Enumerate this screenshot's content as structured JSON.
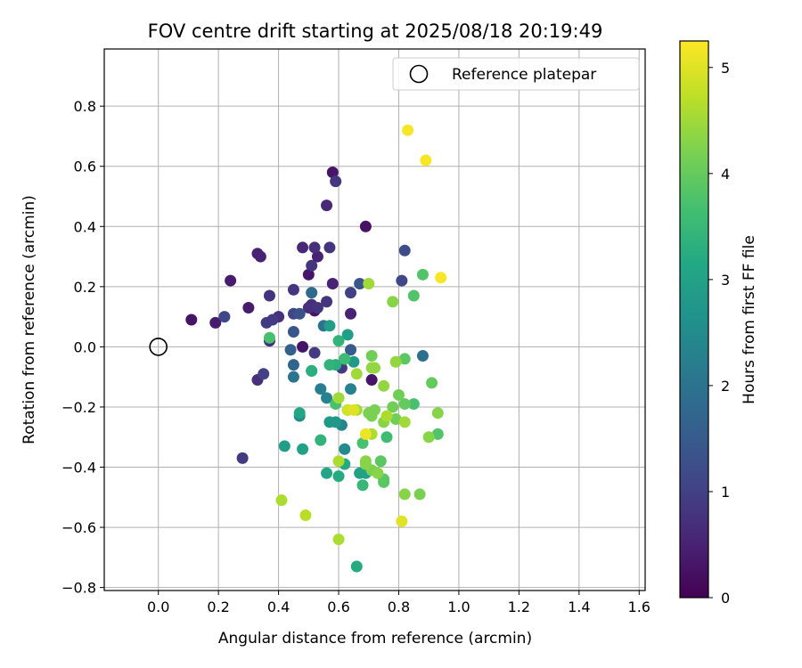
{
  "chart_data": {
    "type": "scatter",
    "title": "FOV centre drift starting at 2025/08/18 20:19:49",
    "xlabel": "Angular distance from reference (arcmin)",
    "ylabel": "Rotation from reference (arcmin)",
    "xlim": [
      -0.18,
      1.62
    ],
    "ylim": [
      -0.81,
      0.99
    ],
    "xticks": [
      "0.0",
      "0.2",
      "0.4",
      "0.6",
      "0.8",
      "1.0",
      "1.2",
      "1.4",
      "1.6"
    ],
    "yticks": [
      "−0.8",
      "−0.6",
      "−0.4",
      "−0.2",
      "0.0",
      "0.2",
      "0.4",
      "0.6",
      "0.8"
    ],
    "grid": true,
    "legend": {
      "position": "top-right",
      "entries": [
        "Reference platepar"
      ]
    },
    "reference_point": {
      "x": 0.0,
      "y": 0.0
    },
    "colorbar": {
      "label": "Hours from first FF file",
      "colormap": "viridis",
      "range": [
        0,
        5.25
      ],
      "ticks": [
        "0",
        "1",
        "2",
        "3",
        "4",
        "5"
      ]
    },
    "series": [
      {
        "points": [
          {
            "x": 0.69,
            "y": 0.4,
            "h": 0.25
          },
          {
            "x": 0.58,
            "y": 0.58,
            "h": 0.3
          },
          {
            "x": 0.5,
            "y": 0.24,
            "h": 0.3
          },
          {
            "x": 0.52,
            "y": 0.12,
            "h": 0.3
          },
          {
            "x": 0.48,
            "y": 0.0,
            "h": 0.3
          },
          {
            "x": 0.71,
            "y": -0.11,
            "h": 0.3
          },
          {
            "x": 0.11,
            "y": 0.09,
            "h": 0.3
          },
          {
            "x": 0.19,
            "y": 0.08,
            "h": 0.4
          },
          {
            "x": 0.24,
            "y": 0.22,
            "h": 0.4
          },
          {
            "x": 0.3,
            "y": 0.13,
            "h": 0.4
          },
          {
            "x": 0.33,
            "y": 0.31,
            "h": 0.5
          },
          {
            "x": 0.34,
            "y": 0.3,
            "h": 0.5
          },
          {
            "x": 0.53,
            "y": 0.3,
            "h": 0.5
          },
          {
            "x": 0.58,
            "y": 0.21,
            "h": 0.5
          },
          {
            "x": 0.64,
            "y": 0.11,
            "h": 0.5
          },
          {
            "x": 0.56,
            "y": 0.47,
            "h": 0.6
          },
          {
            "x": 0.48,
            "y": 0.33,
            "h": 0.6
          },
          {
            "x": 0.52,
            "y": 0.33,
            "h": 0.7
          },
          {
            "x": 0.51,
            "y": 0.14,
            "h": 0.7
          },
          {
            "x": 0.5,
            "y": 0.13,
            "h": 0.7
          },
          {
            "x": 0.4,
            "y": 0.1,
            "h": 0.7
          },
          {
            "x": 0.37,
            "y": 0.02,
            "h": 0.7
          },
          {
            "x": 0.33,
            "y": -0.11,
            "h": 0.7
          },
          {
            "x": 0.57,
            "y": 0.33,
            "h": 0.8
          },
          {
            "x": 0.59,
            "y": 0.55,
            "h": 0.8
          },
          {
            "x": 0.51,
            "y": 0.27,
            "h": 0.8
          },
          {
            "x": 0.45,
            "y": 0.19,
            "h": 0.8
          },
          {
            "x": 0.37,
            "y": 0.17,
            "h": 0.8
          },
          {
            "x": 0.53,
            "y": 0.13,
            "h": 0.8
          },
          {
            "x": 0.56,
            "y": 0.15,
            "h": 0.8
          },
          {
            "x": 0.38,
            "y": 0.09,
            "h": 0.9
          },
          {
            "x": 0.36,
            "y": 0.08,
            "h": 0.9
          },
          {
            "x": 0.52,
            "y": -0.02,
            "h": 0.9
          },
          {
            "x": 0.61,
            "y": -0.07,
            "h": 0.9
          },
          {
            "x": 0.28,
            "y": -0.37,
            "h": 0.9
          },
          {
            "x": 0.35,
            "y": -0.09,
            "h": 1.0
          },
          {
            "x": 0.64,
            "y": 0.18,
            "h": 1.0
          },
          {
            "x": 0.22,
            "y": 0.1,
            "h": 1.1
          },
          {
            "x": 0.45,
            "y": 0.11,
            "h": 1.1
          },
          {
            "x": 0.81,
            "y": 0.22,
            "h": 1.1
          },
          {
            "x": 0.82,
            "y": 0.32,
            "h": 1.2
          },
          {
            "x": 0.47,
            "y": 0.11,
            "h": 1.3
          },
          {
            "x": 0.45,
            "y": 0.05,
            "h": 1.4
          },
          {
            "x": 0.67,
            "y": 0.21,
            "h": 1.4
          },
          {
            "x": 0.64,
            "y": -0.01,
            "h": 1.5
          },
          {
            "x": 0.44,
            "y": -0.01,
            "h": 1.6
          },
          {
            "x": 0.45,
            "y": -0.06,
            "h": 1.7
          },
          {
            "x": 0.51,
            "y": 0.18,
            "h": 1.8
          },
          {
            "x": 0.88,
            "y": -0.03,
            "h": 1.9
          },
          {
            "x": 0.45,
            "y": -0.1,
            "h": 2.0
          },
          {
            "x": 0.55,
            "y": 0.07,
            "h": 2.0
          },
          {
            "x": 0.54,
            "y": -0.14,
            "h": 2.2
          },
          {
            "x": 0.64,
            "y": -0.14,
            "h": 2.3
          },
          {
            "x": 0.56,
            "y": -0.17,
            "h": 2.3
          },
          {
            "x": 0.61,
            "y": -0.26,
            "h": 2.4
          },
          {
            "x": 0.62,
            "y": -0.34,
            "h": 2.5
          },
          {
            "x": 0.47,
            "y": -0.23,
            "h": 2.5
          },
          {
            "x": 0.51,
            "y": -0.08,
            "h": 2.6
          },
          {
            "x": 0.62,
            "y": -0.04,
            "h": 2.7
          },
          {
            "x": 0.65,
            "y": -0.05,
            "h": 2.8
          },
          {
            "x": 0.57,
            "y": -0.25,
            "h": 2.8
          },
          {
            "x": 0.59,
            "y": -0.25,
            "h": 2.8
          },
          {
            "x": 0.63,
            "y": 0.04,
            "h": 2.9
          },
          {
            "x": 0.57,
            "y": 0.07,
            "h": 2.9
          },
          {
            "x": 0.42,
            "y": -0.33,
            "h": 2.9
          },
          {
            "x": 0.48,
            "y": -0.34,
            "h": 3.0
          },
          {
            "x": 0.67,
            "y": -0.42,
            "h": 3.0
          },
          {
            "x": 0.69,
            "y": -0.42,
            "h": 3.0
          },
          {
            "x": 0.66,
            "y": -0.73,
            "h": 3.2
          },
          {
            "x": 0.63,
            "y": -0.21,
            "h": 3.2
          },
          {
            "x": 0.56,
            "y": -0.42,
            "h": 3.1
          },
          {
            "x": 0.6,
            "y": -0.43,
            "h": 3.2
          },
          {
            "x": 0.62,
            "y": -0.39,
            "h": 3.2
          },
          {
            "x": 0.47,
            "y": -0.22,
            "h": 3.1
          },
          {
            "x": 0.51,
            "y": -0.08,
            "h": 3.3
          },
          {
            "x": 0.59,
            "y": -0.06,
            "h": 3.3
          },
          {
            "x": 0.57,
            "y": -0.06,
            "h": 3.4
          },
          {
            "x": 0.6,
            "y": 0.02,
            "h": 3.4
          },
          {
            "x": 0.54,
            "y": -0.31,
            "h": 3.4
          },
          {
            "x": 0.68,
            "y": -0.46,
            "h": 3.5
          },
          {
            "x": 0.62,
            "y": -0.04,
            "h": 3.6
          },
          {
            "x": 0.76,
            "y": -0.3,
            "h": 3.6
          },
          {
            "x": 0.68,
            "y": -0.32,
            "h": 3.7
          },
          {
            "x": 0.59,
            "y": -0.19,
            "h": 3.7
          },
          {
            "x": 0.37,
            "y": 0.03,
            "h": 3.7
          },
          {
            "x": 0.85,
            "y": 0.17,
            "h": 3.8
          },
          {
            "x": 0.85,
            "y": -0.19,
            "h": 3.7
          },
          {
            "x": 0.88,
            "y": 0.24,
            "h": 3.8
          },
          {
            "x": 0.93,
            "y": -0.29,
            "h": 3.8
          },
          {
            "x": 0.82,
            "y": -0.04,
            "h": 3.9
          },
          {
            "x": 0.75,
            "y": -0.45,
            "h": 3.9
          },
          {
            "x": 0.74,
            "y": -0.38,
            "h": 3.9
          },
          {
            "x": 0.75,
            "y": -0.44,
            "h": 3.9
          },
          {
            "x": 0.91,
            "y": -0.12,
            "h": 4.0
          },
          {
            "x": 0.78,
            "y": -0.2,
            "h": 4.1
          },
          {
            "x": 0.71,
            "y": -0.03,
            "h": 4.1
          },
          {
            "x": 0.82,
            "y": -0.19,
            "h": 4.0
          },
          {
            "x": 0.79,
            "y": -0.24,
            "h": 4.1
          },
          {
            "x": 0.8,
            "y": -0.16,
            "h": 4.1
          },
          {
            "x": 0.7,
            "y": -0.22,
            "h": 4.2
          },
          {
            "x": 0.71,
            "y": -0.23,
            "h": 4.2
          },
          {
            "x": 0.72,
            "y": -0.21,
            "h": 4.2
          },
          {
            "x": 0.75,
            "y": -0.25,
            "h": 4.3
          },
          {
            "x": 0.71,
            "y": -0.41,
            "h": 4.2
          },
          {
            "x": 0.73,
            "y": -0.42,
            "h": 4.3
          },
          {
            "x": 0.69,
            "y": -0.39,
            "h": 4.3
          },
          {
            "x": 0.69,
            "y": -0.38,
            "h": 4.3
          },
          {
            "x": 0.82,
            "y": -0.49,
            "h": 4.3
          },
          {
            "x": 0.87,
            "y": -0.49,
            "h": 4.2
          },
          {
            "x": 0.9,
            "y": -0.3,
            "h": 4.3
          },
          {
            "x": 0.93,
            "y": -0.22,
            "h": 4.3
          },
          {
            "x": 0.79,
            "y": -0.05,
            "h": 4.4
          },
          {
            "x": 0.71,
            "y": -0.07,
            "h": 4.4
          },
          {
            "x": 0.72,
            "y": -0.07,
            "h": 4.4
          },
          {
            "x": 0.75,
            "y": -0.13,
            "h": 4.4
          },
          {
            "x": 0.78,
            "y": 0.15,
            "h": 4.3
          },
          {
            "x": 0.7,
            "y": 0.21,
            "h": 4.5
          },
          {
            "x": 0.66,
            "y": -0.09,
            "h": 4.5
          },
          {
            "x": 0.6,
            "y": -0.17,
            "h": 4.5
          },
          {
            "x": 0.66,
            "y": -0.21,
            "h": 4.5
          },
          {
            "x": 0.82,
            "y": -0.25,
            "h": 4.5
          },
          {
            "x": 0.76,
            "y": -0.23,
            "h": 4.6
          },
          {
            "x": 0.71,
            "y": -0.29,
            "h": 4.6
          },
          {
            "x": 0.6,
            "y": -0.38,
            "h": 4.6
          },
          {
            "x": 0.41,
            "y": -0.51,
            "h": 4.6
          },
          {
            "x": 0.49,
            "y": -0.56,
            "h": 4.7
          },
          {
            "x": 0.6,
            "y": -0.64,
            "h": 4.6
          },
          {
            "x": 0.63,
            "y": -0.21,
            "h": 4.9
          },
          {
            "x": 0.65,
            "y": -0.21,
            "h": 5.0
          },
          {
            "x": 0.69,
            "y": -0.29,
            "h": 5.1
          },
          {
            "x": 0.81,
            "y": -0.58,
            "h": 5.0
          },
          {
            "x": 0.83,
            "y": 0.72,
            "h": 5.2
          },
          {
            "x": 0.89,
            "y": 0.62,
            "h": 5.2
          },
          {
            "x": 0.94,
            "y": 0.23,
            "h": 5.2
          }
        ]
      }
    ]
  }
}
